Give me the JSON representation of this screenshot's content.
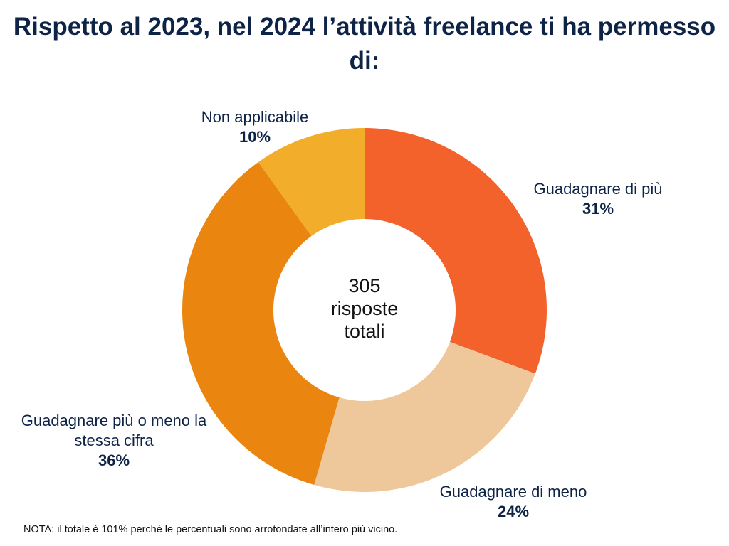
{
  "chart_data": {
    "type": "donut",
    "title": "Rispetto al 2023, nel 2024 l’attività freelance ti ha permesso di:",
    "categories": [
      "Guadagnare di più",
      "Guadagnare di meno",
      "Guadagnare più o meno la stessa cifra",
      "Non applicabile"
    ],
    "values": [
      31,
      24,
      36,
      10
    ],
    "value_labels": [
      "31%",
      "24%",
      "36%",
      "10%"
    ],
    "colors": [
      "#F4622C",
      "#EEC89A",
      "#EA850F",
      "#F2AE2B"
    ],
    "start": "top, clockwise",
    "center_text": [
      "305",
      "risposte",
      "totali"
    ],
    "note": "NOTA: il totale è 101% perché le percentuali sono arrotondate all’intero più vicino."
  }
}
